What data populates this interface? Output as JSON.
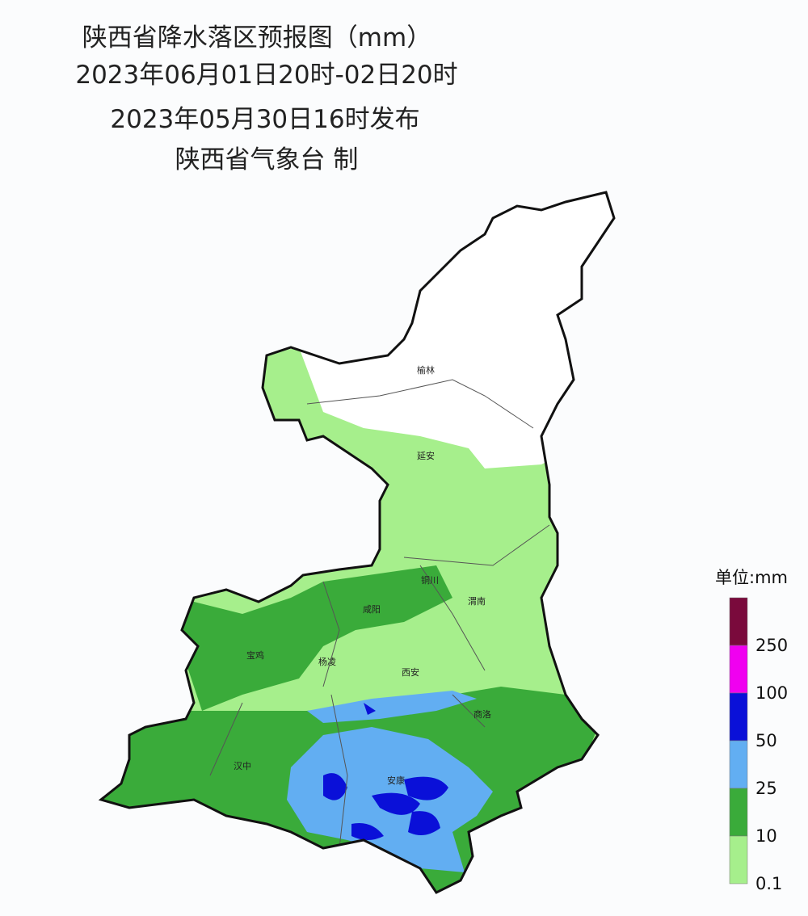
{
  "header": {
    "title": "陕西省降水落区预报图（mm）",
    "period": "2023年06月01日20时-02日20时",
    "issued": "2023年05月30日16时发布",
    "producer": "陕西省气象台 制"
  },
  "cities": [
    "榆林",
    "延安",
    "铜川",
    "咸阳",
    "渭南",
    "宝鸡",
    "杨凌",
    "西安",
    "商洛",
    "汉中",
    "安康"
  ],
  "legend": {
    "unit": "单位:mm",
    "items": [
      {
        "color": "#7a0a3c",
        "label": "250"
      },
      {
        "color": "#f000f0",
        "label": "100"
      },
      {
        "color": "#0a10d8",
        "label": "50"
      },
      {
        "color": "#62aef2",
        "label": "25"
      },
      {
        "color": "#3aab3a",
        "label": "10"
      },
      {
        "color": "#a6ef8c",
        "label": "0.1"
      }
    ]
  }
}
